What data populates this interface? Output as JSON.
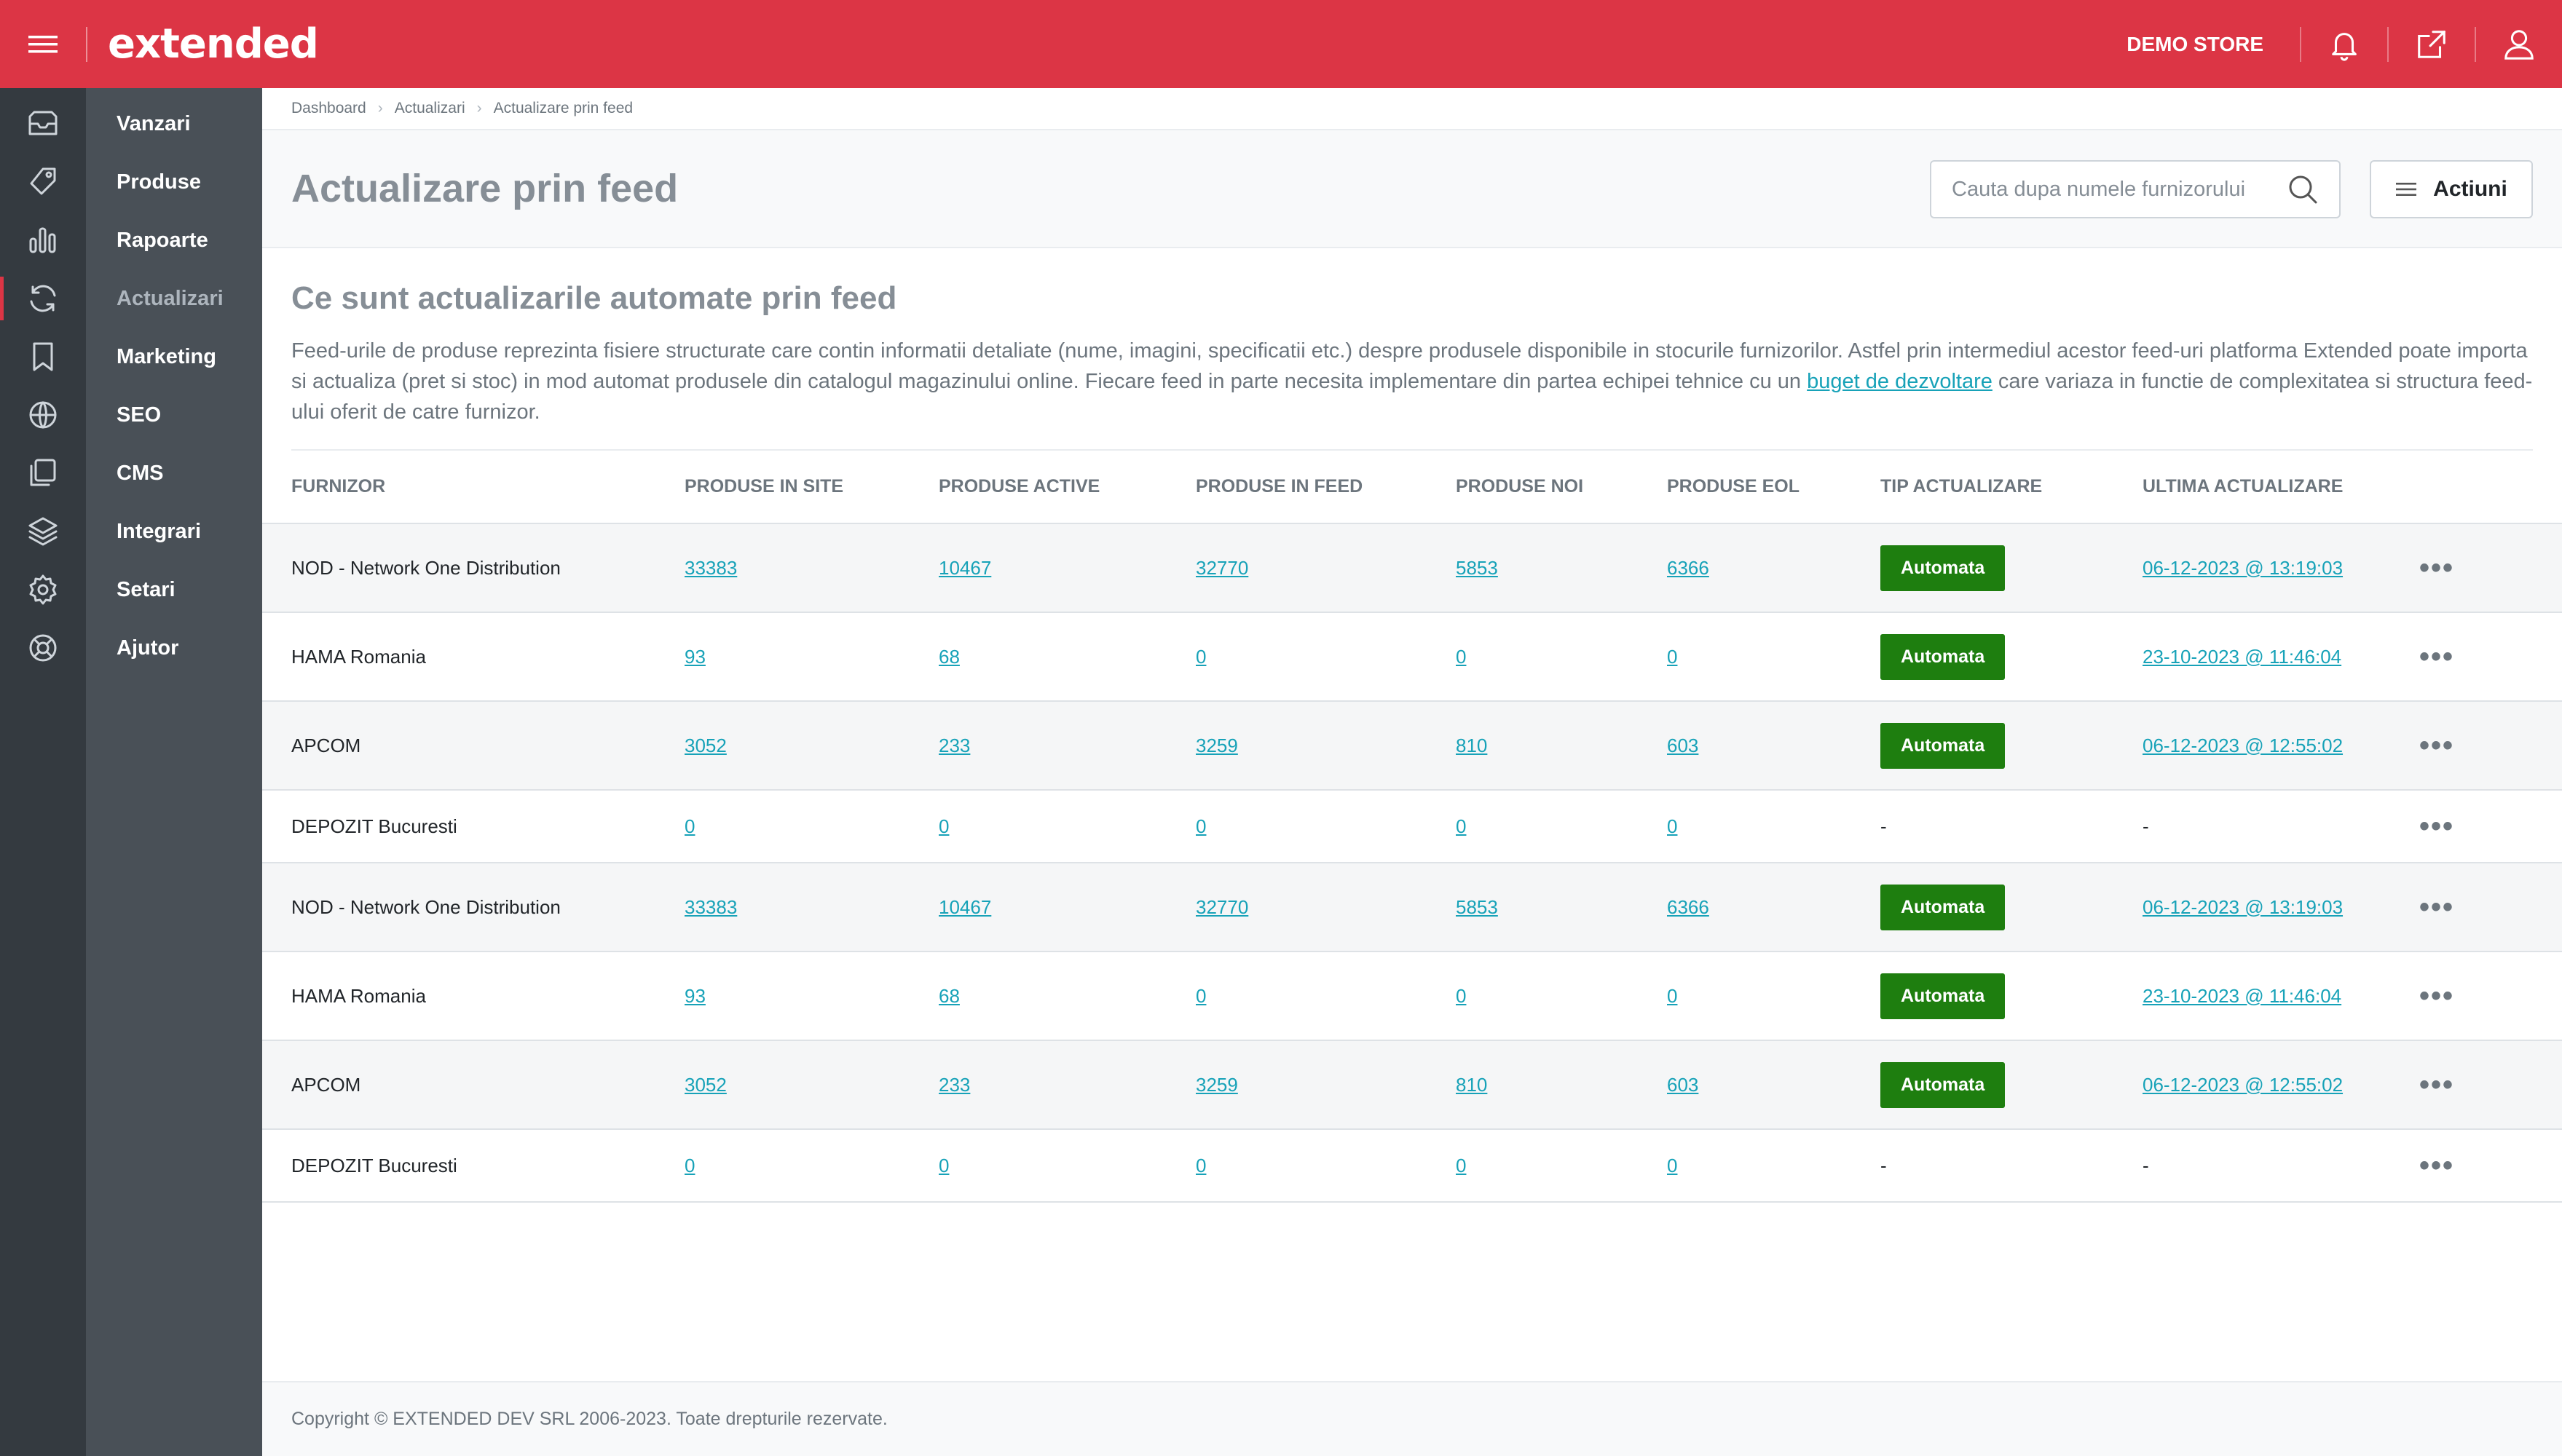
{
  "app": {
    "logo": "extended",
    "store": "DEMO STORE"
  },
  "topbar_icons": [
    "bell-icon",
    "external-link-icon",
    "user-icon"
  ],
  "sidebar": {
    "items": [
      {
        "label": "Vanzari",
        "icon": "inbox-icon",
        "active": false
      },
      {
        "label": "Produse",
        "icon": "tag-icon",
        "active": false
      },
      {
        "label": "Rapoarte",
        "icon": "chart-bars-icon",
        "active": false
      },
      {
        "label": "Actualizari",
        "icon": "refresh-icon",
        "active": true
      },
      {
        "label": "Marketing",
        "icon": "bookmark-icon",
        "active": false
      },
      {
        "label": "SEO",
        "icon": "globe-icon",
        "active": false
      },
      {
        "label": "CMS",
        "icon": "copy-icon",
        "active": false
      },
      {
        "label": "Integrari",
        "icon": "layers-icon",
        "active": false
      },
      {
        "label": "Setari",
        "icon": "gear-icon",
        "active": false
      },
      {
        "label": "Ajutor",
        "icon": "lifebuoy-icon",
        "active": false
      }
    ]
  },
  "breadcrumb": [
    "Dashboard",
    "Actualizari",
    "Actualizare prin feed"
  ],
  "page": {
    "title": "Actualizare prin feed",
    "search_placeholder": "Cauta dupa numele furnizorului",
    "actions_label": "Actiuni"
  },
  "info": {
    "title": "Ce sunt actualizarile automate prin feed",
    "text_before": "Feed-urile de produse reprezinta fisiere structurate care contin informatii detaliate (nume, imagini, specificatii etc.) despre produsele disponibile in stocurile furnizorilor. Astfel prin intermediul acestor feed-uri platforma Extended poate importa si actualiza (pret si stoc) in mod automat produsele din catalogul magazinului online. Fiecare feed in parte necesita implementare din partea echipei tehnice cu un ",
    "link": "buget de dezvoltare",
    "text_after": " care variaza in functie de complexitatea si structura feed-ului oferit de catre furnizor."
  },
  "table": {
    "columns": [
      "FURNIZOR",
      "PRODUSE IN SITE",
      "PRODUSE ACTIVE",
      "PRODUSE IN FEED",
      "PRODUSE NOI",
      "PRODUSE EOL",
      "TIP ACTUALIZARE",
      "ULTIMA ACTUALIZARE"
    ],
    "rows": [
      {
        "supplier": "NOD - Network One Distribution",
        "in_site": "33383",
        "active": "10467",
        "in_feed": "32770",
        "new": "5853",
        "eol": "6366",
        "type": "Automata",
        "updated": "06-12-2023 @ 13:19:03"
      },
      {
        "supplier": "HAMA Romania",
        "in_site": "93",
        "active": "68",
        "in_feed": "0",
        "new": "0",
        "eol": "0",
        "type": "Automata",
        "updated": "23-10-2023 @ 11:46:04"
      },
      {
        "supplier": "APCOM",
        "in_site": "3052",
        "active": "233",
        "in_feed": "3259",
        "new": "810",
        "eol": "603",
        "type": "Automata",
        "updated": "06-12-2023 @ 12:55:02"
      },
      {
        "supplier": "DEPOZIT Bucuresti",
        "in_site": "0",
        "active": "0",
        "in_feed": "0",
        "new": "0",
        "eol": "0",
        "type": "",
        "updated": ""
      },
      {
        "supplier": "NOD - Network One Distribution",
        "in_site": "33383",
        "active": "10467",
        "in_feed": "32770",
        "new": "5853",
        "eol": "6366",
        "type": "Automata",
        "updated": "06-12-2023 @ 13:19:03"
      },
      {
        "supplier": "HAMA Romania",
        "in_site": "93",
        "active": "68",
        "in_feed": "0",
        "new": "0",
        "eol": "0",
        "type": "Automata",
        "updated": "23-10-2023 @ 11:46:04"
      },
      {
        "supplier": "APCOM",
        "in_site": "3052",
        "active": "233",
        "in_feed": "3259",
        "new": "810",
        "eol": "603",
        "type": "Automata",
        "updated": "06-12-2023 @ 12:55:02"
      },
      {
        "supplier": "DEPOZIT Bucuresti",
        "in_site": "0",
        "active": "0",
        "in_feed": "0",
        "new": "0",
        "eol": "0",
        "type": "",
        "updated": ""
      }
    ],
    "empty_mark": "-",
    "more_label": "•••"
  },
  "footer": {
    "text": "Copyright © EXTENDED DEV SRL 2006-2023. Toate drepturile rezervate."
  },
  "colors": {
    "brand": "#dc3545",
    "rail": "#343a40",
    "menu": "#495057",
    "link": "#17a2b8",
    "badge": "#1e7e0f"
  }
}
